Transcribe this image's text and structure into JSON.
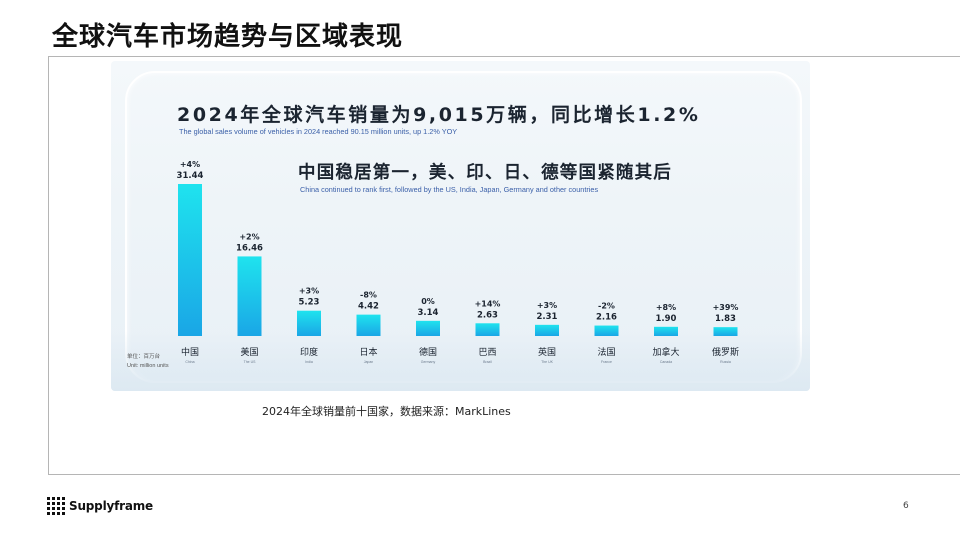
{
  "slide": {
    "title": "全球汽车市场趋势与区域表现",
    "caption": "2024年全球销量前十国家，数据来源：MarkLines",
    "brand": "Supplyframe",
    "page_number": "6"
  },
  "chart_data": {
    "type": "bar",
    "title": "2024年全球汽车销量为9,015万辆，同比增长1.2%",
    "title_en": "The global sales volume of vehicles in 2024 reached 90.15 million units, up 1.2% YOY",
    "subtitle": "中国稳居第一，美、印、日、德等国紧随其后",
    "subtitle_en": "China continued to rank first, followed by the US, India, Japan, Germany and other countries",
    "unit_label": "单位：百万台",
    "unit_label_en": "Unit: million units",
    "categories": [
      "中国",
      "美国",
      "印度",
      "日本",
      "德国",
      "巴西",
      "英国",
      "法国",
      "加拿大",
      "俄罗斯"
    ],
    "categories_en": [
      "China",
      "The US",
      "India",
      "Japan",
      "Germany",
      "Brazil",
      "The UK",
      "France",
      "Canada",
      "Russia"
    ],
    "values": [
      31.44,
      16.46,
      5.23,
      4.42,
      3.14,
      2.63,
      2.31,
      2.16,
      1.9,
      1.83
    ],
    "value_labels": [
      "31.44",
      "16.46",
      "5.23",
      "4.42",
      "3.14",
      "2.63",
      "2.31",
      "2.16",
      "1.90",
      "1.83"
    ],
    "growth": [
      "+4%",
      "+2%",
      "+3%",
      "-8%",
      "0%",
      "+14%",
      "+3%",
      "-2%",
      "+8%",
      "+39%"
    ],
    "ylim": [
      0,
      31.44
    ],
    "grid": false,
    "legend": "none",
    "colors": {
      "bar_top": "#1fe3ee",
      "bar_bottom": "#1aa6e6",
      "text": "#1b2430",
      "title_en": "#3a5fa8"
    }
  }
}
